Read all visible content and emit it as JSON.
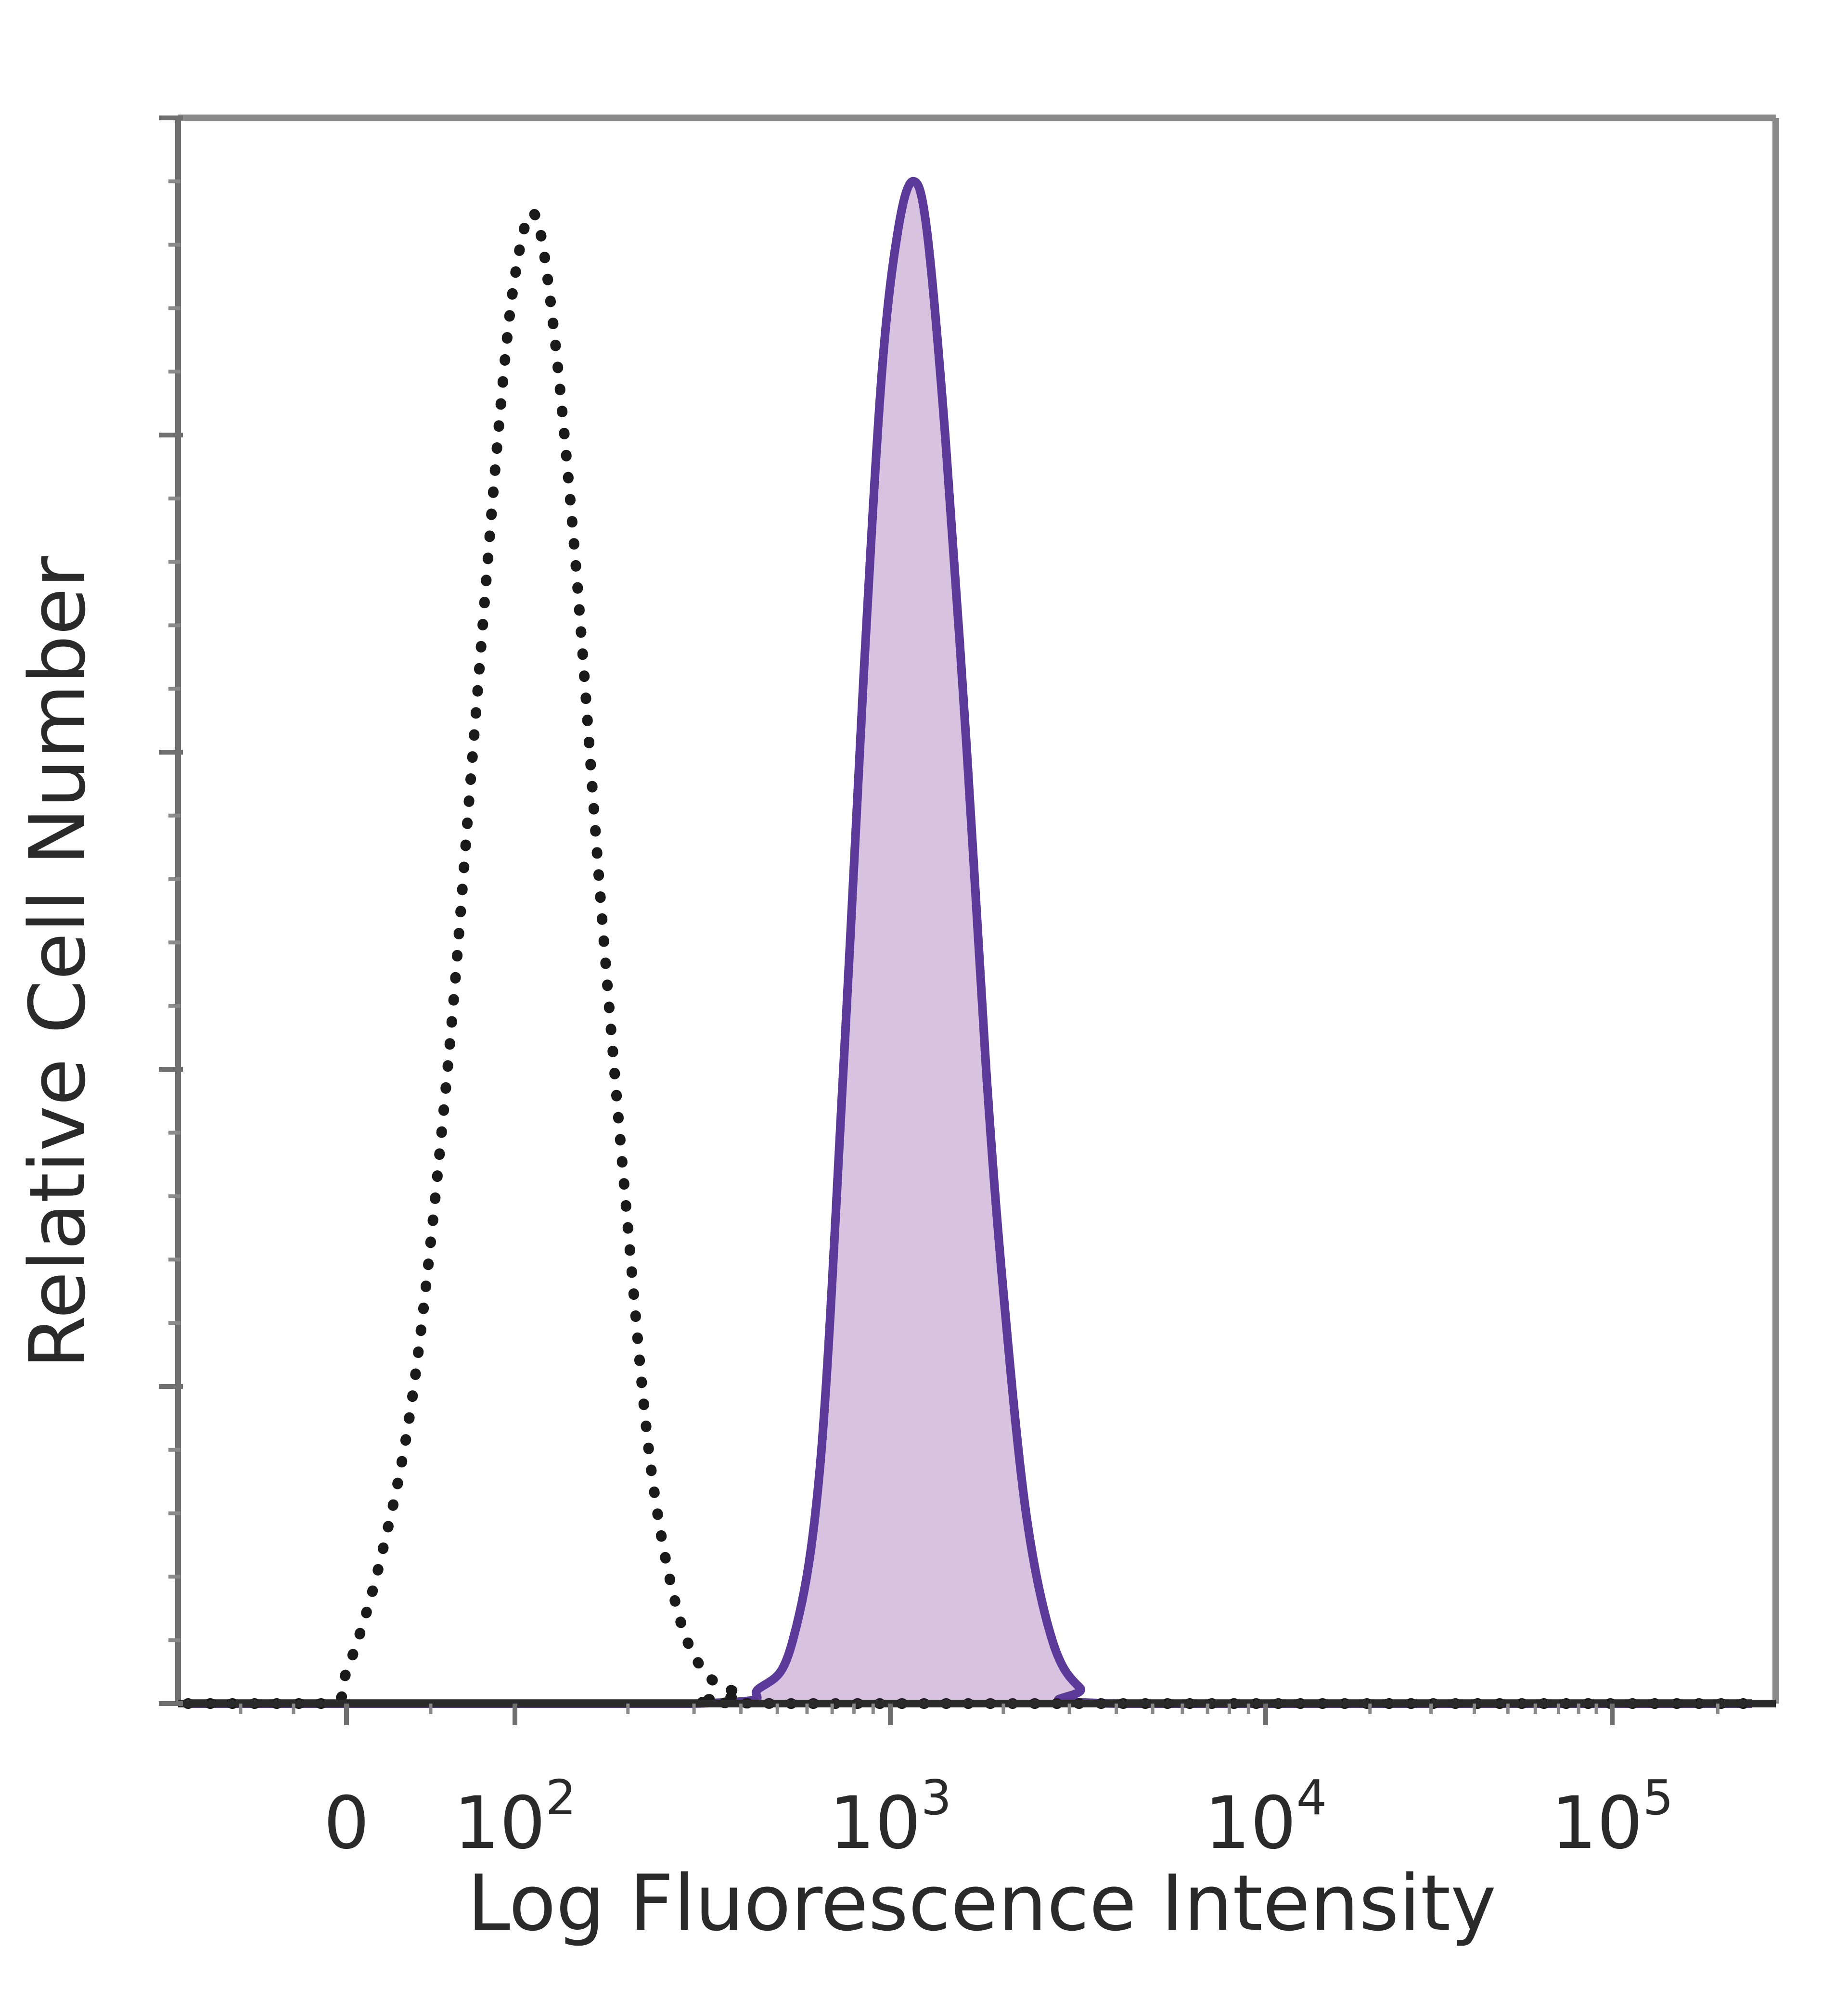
{
  "chart_data": {
    "type": "area",
    "title": "",
    "xlabel": "Log Fluorescence Intensity",
    "ylabel": "Relative Cell Number",
    "x_scale": "biexponential",
    "xlim": [
      -150,
      250000
    ],
    "ylim": [
      0,
      100
    ],
    "x_ticks": [
      {
        "value": 0,
        "base": "0",
        "exp": ""
      },
      {
        "value": 100,
        "base": "10",
        "exp": "2"
      },
      {
        "value": 1000,
        "base": "10",
        "exp": "3"
      },
      {
        "value": 10000,
        "base": "10",
        "exp": "4"
      },
      {
        "value": 100000,
        "base": "10",
        "exp": "5"
      }
    ],
    "grid": false,
    "series": [
      {
        "role": "control",
        "style": "dotted",
        "color": "#1a1a1a",
        "points": [
          [
            -150,
            0
          ],
          [
            -20,
            0
          ],
          [
            0,
            2
          ],
          [
            20,
            9
          ],
          [
            40,
            20
          ],
          [
            60,
            40
          ],
          [
            75,
            60
          ],
          [
            90,
            80
          ],
          [
            100,
            90
          ],
          [
            112,
            94
          ],
          [
            125,
            88
          ],
          [
            145,
            72
          ],
          [
            170,
            50
          ],
          [
            200,
            30
          ],
          [
            230,
            15
          ],
          [
            270,
            6
          ],
          [
            320,
            2
          ],
          [
            400,
            0.6
          ],
          [
            500,
            0
          ],
          [
            250000,
            0
          ]
        ]
      },
      {
        "role": "sample",
        "style": "filled",
        "color": "#5b3a9a",
        "fill": "#d7c3e0",
        "points": [
          [
            -150,
            0
          ],
          [
            300,
            0
          ],
          [
            450,
            1
          ],
          [
            550,
            4
          ],
          [
            650,
            15
          ],
          [
            750,
            40
          ],
          [
            850,
            65
          ],
          [
            950,
            84
          ],
          [
            1050,
            93
          ],
          [
            1150,
            96
          ],
          [
            1250,
            93
          ],
          [
            1400,
            80
          ],
          [
            1600,
            60
          ],
          [
            1800,
            40
          ],
          [
            2000,
            26
          ],
          [
            2300,
            12
          ],
          [
            2700,
            4
          ],
          [
            3200,
            1
          ],
          [
            4000,
            0
          ],
          [
            250000,
            0
          ]
        ]
      }
    ]
  }
}
